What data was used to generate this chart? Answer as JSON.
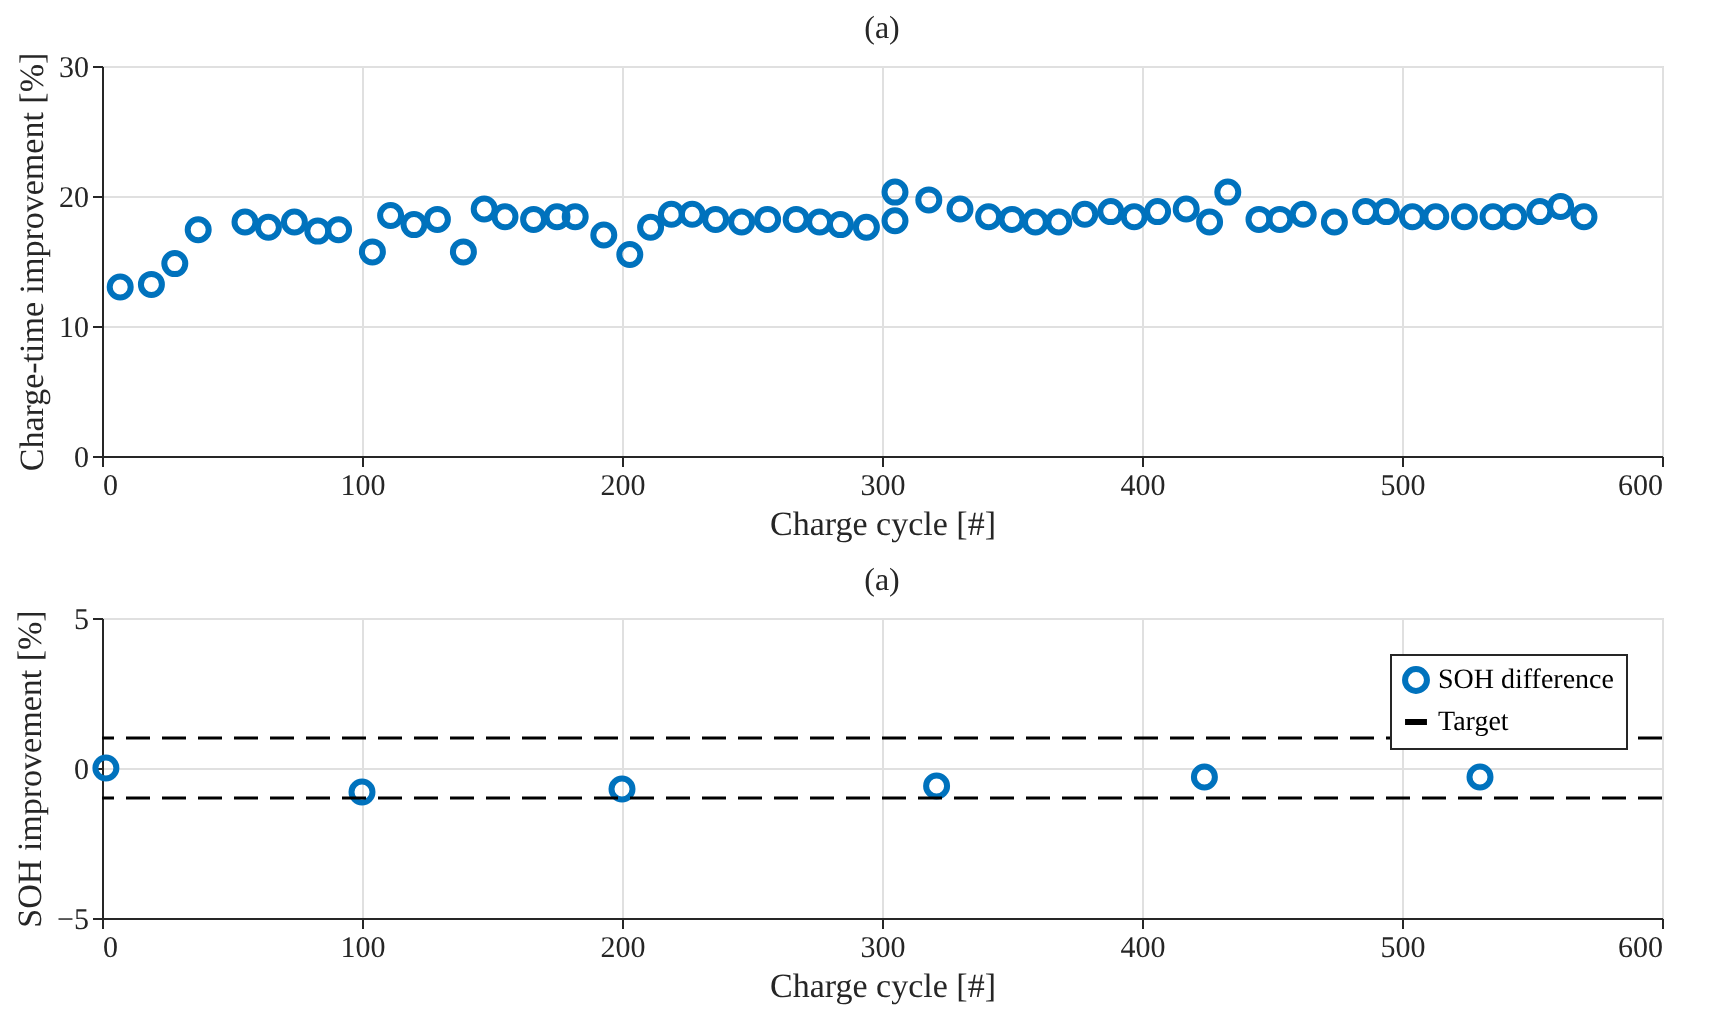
{
  "chart_data": [
    {
      "type": "scatter",
      "title": "(a)",
      "xlabel": "Charge cycle [#]",
      "ylabel": "Charge-time improvement [%]",
      "x": [
        7,
        19,
        28,
        37,
        55,
        64,
        74,
        83,
        91,
        104,
        111,
        120,
        129,
        139,
        147,
        155,
        166,
        175,
        182,
        193,
        203,
        211,
        219,
        227,
        236,
        246,
        256,
        267,
        276,
        284,
        294,
        305,
        305,
        318,
        330,
        341,
        350,
        359,
        368,
        378,
        388,
        397,
        406,
        417,
        426,
        433,
        445,
        453,
        462,
        474,
        486,
        494,
        504,
        513,
        524,
        535,
        543,
        553,
        561,
        570
      ],
      "series": [
        {
          "color": "#0072bd",
          "values": [
            13.0,
            13.2,
            14.8,
            17.4,
            18.0,
            17.6,
            18.0,
            17.3,
            17.4,
            15.7,
            18.5,
            17.8,
            18.2,
            15.7,
            19.0,
            18.4,
            18.2,
            18.4,
            18.4,
            17.0,
            15.5,
            17.6,
            18.6,
            18.6,
            18.2,
            18.0,
            18.2,
            18.2,
            18.0,
            17.8,
            17.6,
            18.1,
            20.3,
            19.7,
            19.0,
            18.4,
            18.2,
            18.0,
            18.0,
            18.6,
            18.8,
            18.4,
            18.8,
            19.0,
            18.0,
            20.3,
            18.2,
            18.2,
            18.6,
            18.0,
            18.8,
            18.8,
            18.4,
            18.4,
            18.4,
            18.4,
            18.4,
            18.8,
            19.2,
            18.4
          ]
        }
      ],
      "xlim": [
        0,
        600
      ],
      "xticks": [
        0,
        100,
        200,
        300,
        400,
        500,
        600
      ],
      "ylim": [
        0,
        30
      ],
      "yticks": [
        0,
        10,
        20,
        30
      ],
      "grid": true,
      "marker": "circle"
    },
    {
      "type": "scatter",
      "title": "(a)",
      "xlabel": "Charge cycle [#]",
      "ylabel": "SOH improvement [%]",
      "x": [
        1.5,
        100,
        200,
        321,
        424,
        530
      ],
      "series": [
        {
          "name": "SOH difference",
          "color": "#0072bd",
          "values": [
            0.0,
            -0.8,
            -0.7,
            -0.6,
            -0.3,
            -0.3
          ]
        }
      ],
      "ref_lines": [
        {
          "axis": "y",
          "value": 1,
          "label": "Target",
          "color": "#000000",
          "line_style": "dashed"
        },
        {
          "axis": "y",
          "value": -1,
          "color": "#000000",
          "line_style": "dashed"
        }
      ],
      "xlim": [
        0,
        600
      ],
      "xticks": [
        0,
        100,
        200,
        300,
        400,
        500,
        600
      ],
      "ylim": [
        -5,
        5
      ],
      "yticks": [
        -5,
        0,
        5
      ],
      "grid": true,
      "marker": "circle",
      "legend": "top right"
    }
  ]
}
